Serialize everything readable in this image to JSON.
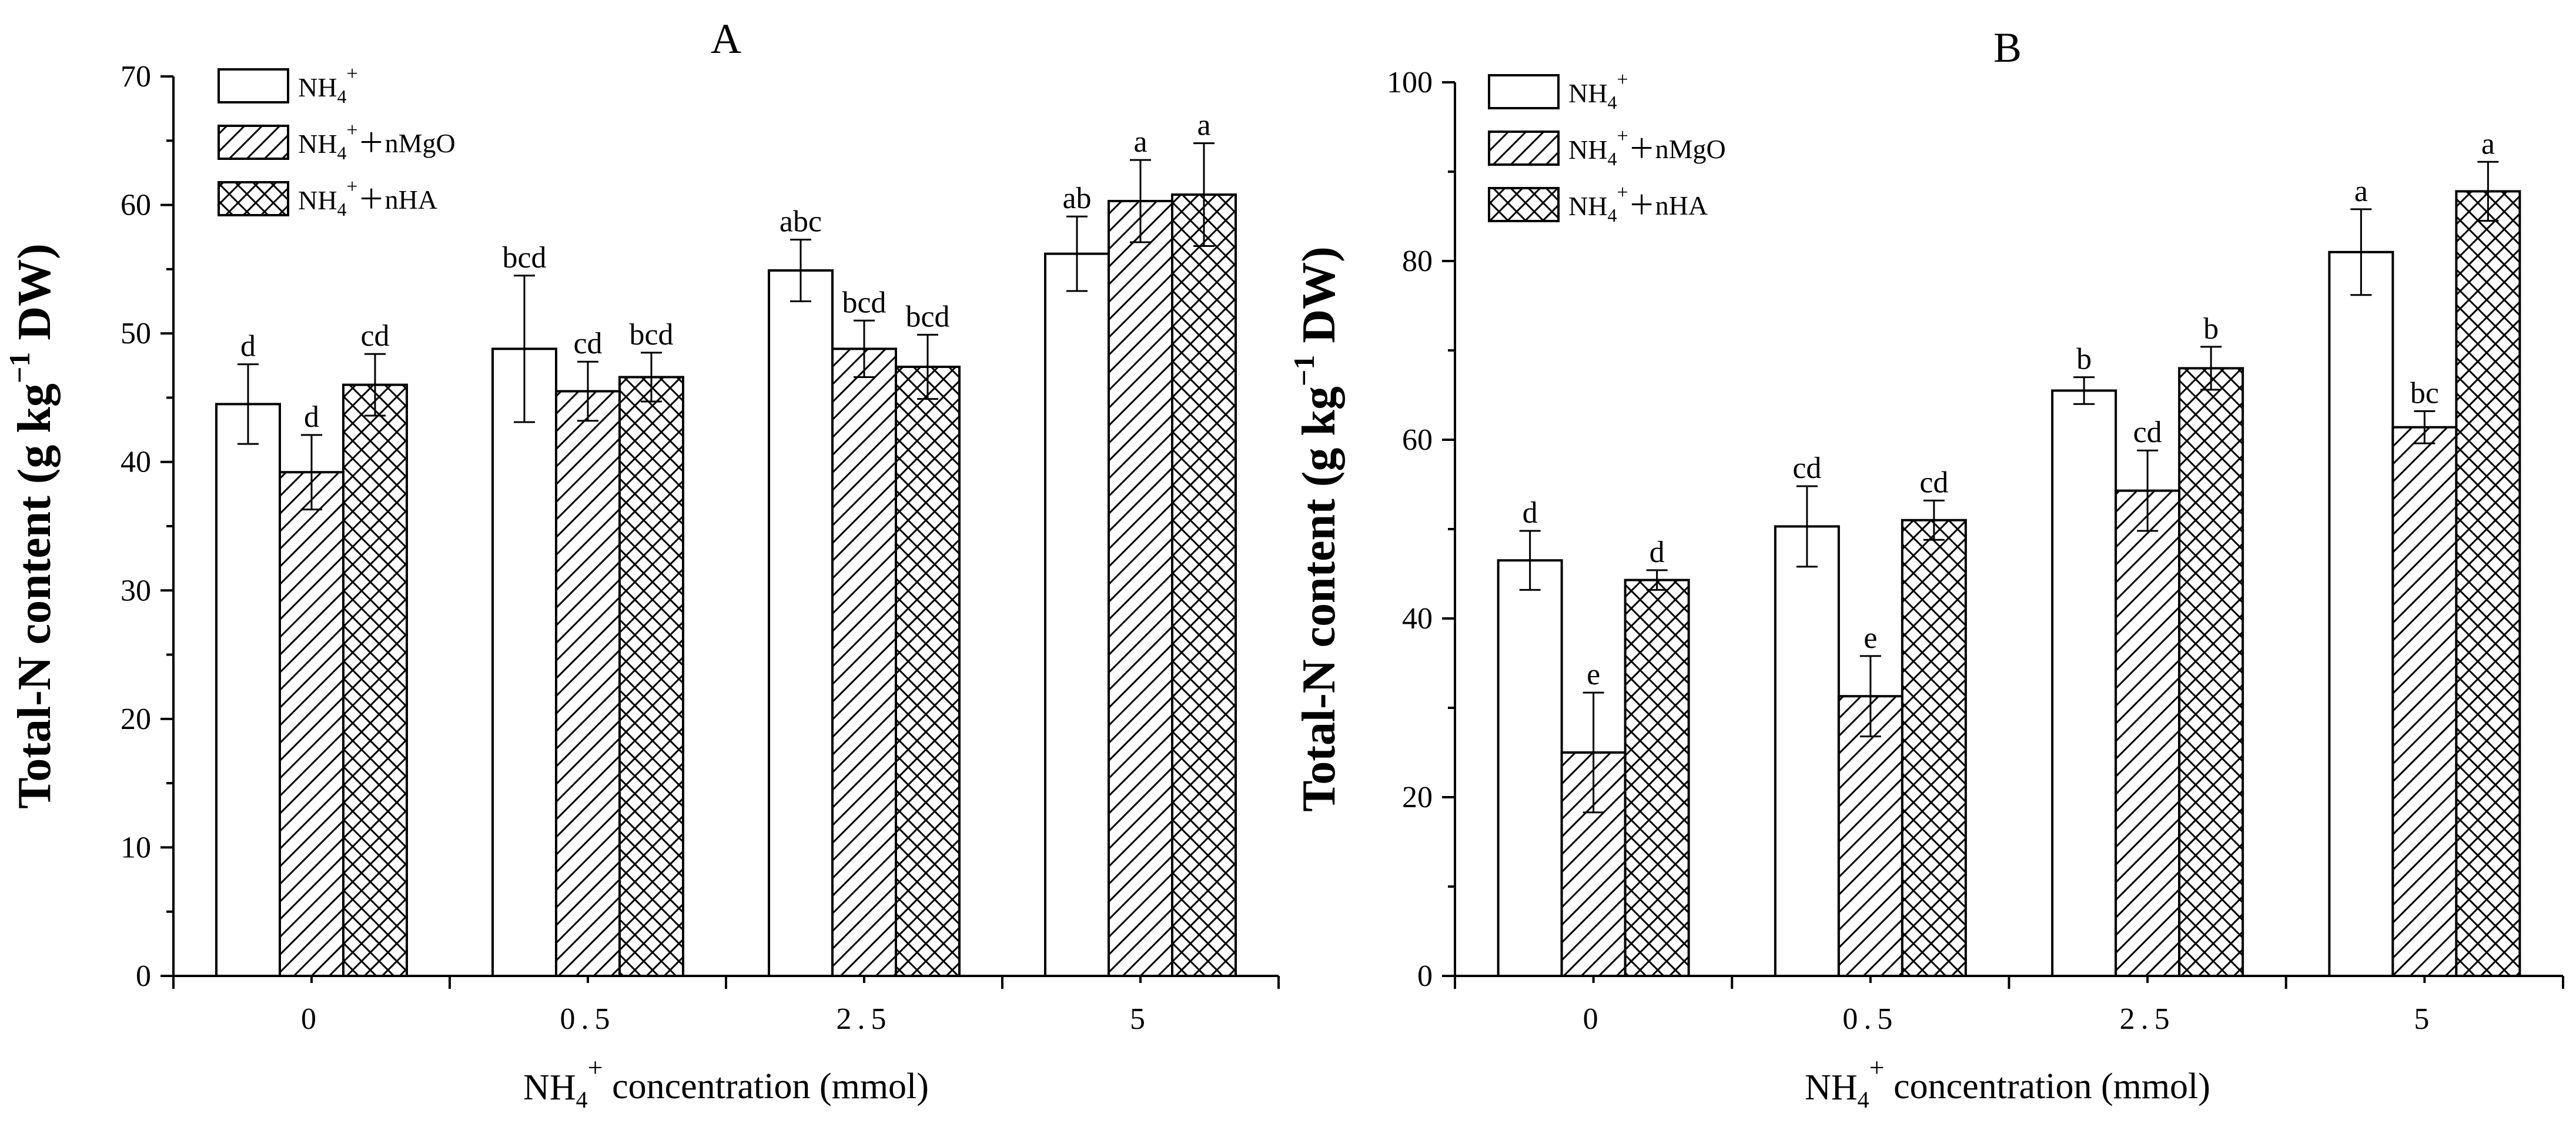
{
  "chart_data": [
    {
      "type": "bar",
      "title": "A",
      "categories": [
        "0",
        "0.5",
        "2.5",
        "5"
      ],
      "xlabel": {
        "base": "NH",
        "sub": "4",
        "sup": "+",
        "rest": " concentration (mmol)"
      },
      "ylabel": {
        "base": "Total-N content (g kg",
        "sup": "−1",
        "rest": " DW)"
      },
      "ylim": [
        0,
        70
      ],
      "yticks": [
        0,
        10,
        20,
        30,
        40,
        50,
        60,
        70
      ],
      "legend_position": "top-left",
      "series": [
        {
          "name": "NH4+",
          "legend": {
            "base": "NH",
            "sub": "4",
            "sup": "+",
            "rest": ""
          },
          "pattern": "none",
          "values": [
            44.5,
            48.8,
            54.9,
            56.2
          ],
          "errors": [
            3.1,
            5.7,
            2.4,
            2.9
          ],
          "labels": [
            "d",
            "bcd",
            "abc",
            "ab"
          ]
        },
        {
          "name": "NH4+ + nMgO",
          "legend": {
            "base": "NH",
            "sub": "4",
            "sup": "+",
            "rest": "＋nMgO"
          },
          "pattern": "hatch",
          "values": [
            39.2,
            45.5,
            48.8,
            60.3
          ],
          "errors": [
            2.9,
            2.3,
            2.2,
            3.2
          ],
          "labels": [
            "d",
            "cd",
            "bcd",
            "a"
          ]
        },
        {
          "name": "NH4+ + nHA",
          "legend": {
            "base": "NH",
            "sub": "4",
            "sup": "+",
            "rest": "＋nHA"
          },
          "pattern": "cross",
          "values": [
            46.0,
            46.6,
            47.4,
            60.8
          ],
          "errors": [
            2.4,
            1.9,
            2.5,
            4.0
          ],
          "labels": [
            "cd",
            "bcd",
            "bcd",
            "a"
          ]
        }
      ]
    },
    {
      "type": "bar",
      "title": "B",
      "categories": [
        "0",
        "0.5",
        "2.5",
        "5"
      ],
      "xlabel": {
        "base": "NH",
        "sub": "4",
        "sup": "+",
        "rest": " concentration (mmol)"
      },
      "ylabel": {
        "base": "Total-N content (g kg",
        "sup": "−1",
        "rest": " DW)"
      },
      "ylim": [
        0,
        100
      ],
      "yticks": [
        0,
        20,
        40,
        60,
        80,
        100
      ],
      "legend_position": "top-left",
      "series": [
        {
          "name": "NH4+",
          "legend": {
            "base": "NH",
            "sub": "4",
            "sup": "+",
            "rest": ""
          },
          "pattern": "none",
          "values": [
            46.5,
            50.3,
            65.5,
            81.0
          ],
          "errors": [
            3.3,
            4.5,
            1.5,
            4.8
          ],
          "labels": [
            "d",
            "cd",
            "b",
            "a"
          ]
        },
        {
          "name": "NH4+ + nMgO",
          "legend": {
            "base": "NH",
            "sub": "4",
            "sup": "+",
            "rest": "＋nMgO"
          },
          "pattern": "hatch",
          "values": [
            25.0,
            31.3,
            54.3,
            61.4
          ],
          "errors": [
            6.7,
            4.5,
            4.5,
            1.8
          ],
          "labels": [
            "e",
            "e",
            "cd",
            "bc"
          ]
        },
        {
          "name": "NH4+ + nHA",
          "legend": {
            "base": "NH",
            "sub": "4",
            "sup": "+",
            "rest": "＋nHA"
          },
          "pattern": "cross",
          "values": [
            44.3,
            51.0,
            68.0,
            87.8
          ],
          "errors": [
            1.1,
            2.2,
            2.4,
            3.3
          ],
          "labels": [
            "d",
            "cd",
            "b",
            "a"
          ]
        }
      ]
    }
  ]
}
